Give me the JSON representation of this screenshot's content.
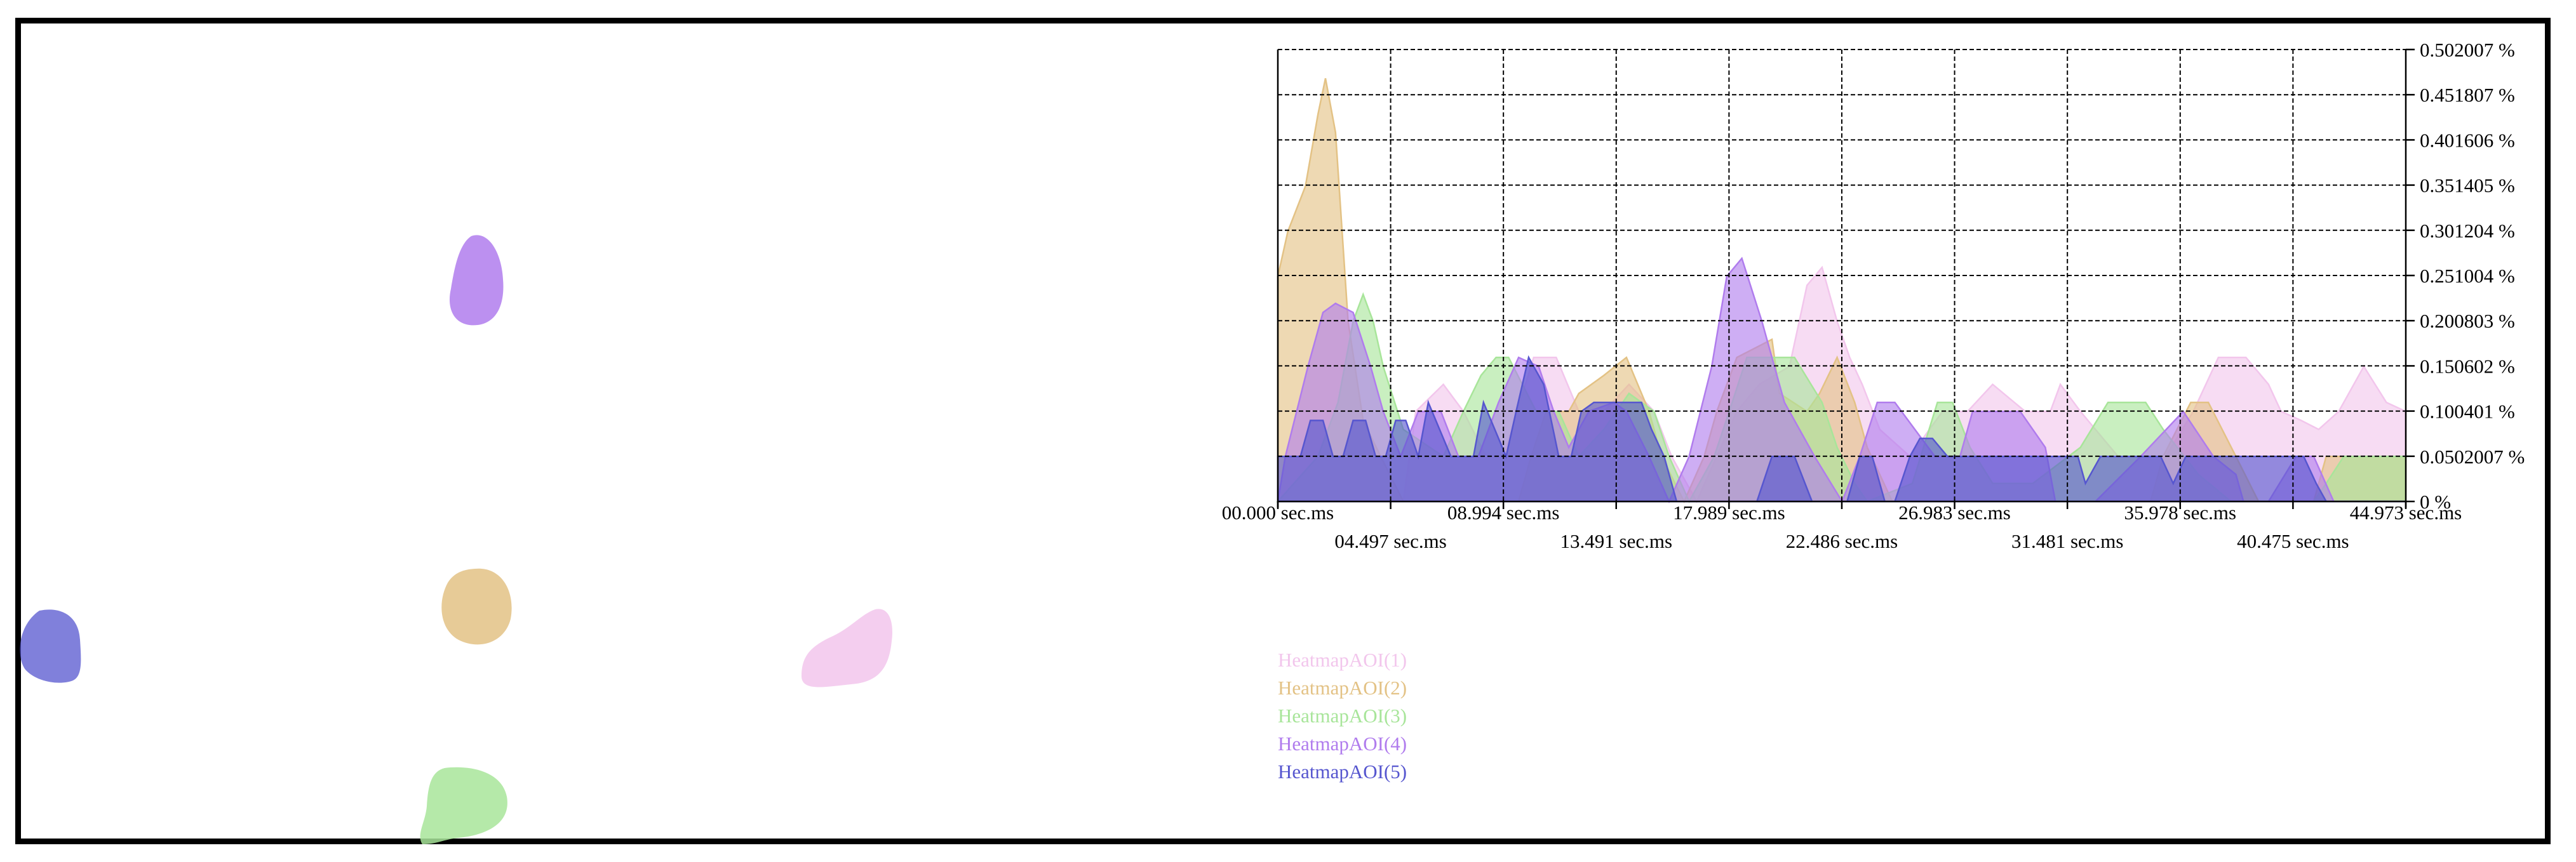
{
  "chart_data": {
    "type": "area",
    "x_unit": "sec.ms",
    "xlim": [
      0,
      44.973
    ],
    "ylim": [
      0,
      0.502007
    ],
    "x_ticks_row1": [
      "00.000 sec.ms",
      "08.994 sec.ms",
      "17.989 sec.ms",
      "26.983 sec.ms",
      "35.978 sec.ms",
      "44.973 sec.ms"
    ],
    "x_ticks_row2": [
      "04.497 sec.ms",
      "13.491 sec.ms",
      "22.486 sec.ms",
      "31.481 sec.ms",
      "40.475 sec.ms"
    ],
    "x_tick_values": [
      0,
      4.497,
      8.994,
      13.491,
      17.989,
      22.486,
      26.983,
      31.481,
      35.978,
      40.475,
      44.973
    ],
    "y_ticks": [
      "0 %",
      "0.0502007 %",
      "0.100401 %",
      "0.150602 %",
      "0.200803 %",
      "0.251004 %",
      "0.301204 %",
      "0.351405 %",
      "0.401606 %",
      "0.451807 %",
      "0.502007 %"
    ],
    "y_tick_values": [
      0,
      0.0502007,
      0.100401,
      0.150602,
      0.200803,
      0.251004,
      0.301204,
      0.351405,
      0.401606,
      0.451807,
      0.502007
    ],
    "grid": true,
    "legend_position": "bottom-left",
    "series": [
      {
        "name": "HeatmapAOI(1)",
        "color": "#f2c6ec",
        "x": [
          0,
          3,
          5,
          5.5,
          6.6,
          7.4,
          8.3,
          9,
          10.2,
          11.1,
          12,
          13,
          14,
          15,
          15.7,
          16.7,
          17.5,
          18.3,
          19.2,
          20.4,
          21.1,
          21.7,
          22.3,
          22.8,
          23.3,
          24,
          25.2,
          26.5,
          27.5,
          28.5,
          29.8,
          30.8,
          31.2,
          32,
          33.5,
          35.4,
          36.5,
          37.5,
          38.6,
          39.5,
          40,
          40.8,
          41.5,
          42.3,
          43.3,
          44.2,
          44.973
        ],
        "values": [
          0,
          0,
          0,
          0.1,
          0.13,
          0.1,
          0.05,
          0.05,
          0.16,
          0.16,
          0.1,
          0.1,
          0.13,
          0.1,
          0.05,
          0.0,
          0.05,
          0.1,
          0.13,
          0.15,
          0.24,
          0.26,
          0.2,
          0.16,
          0.13,
          0.08,
          0.05,
          0.1,
          0.1,
          0.13,
          0.1,
          0.1,
          0.13,
          0.1,
          0.05,
          0.05,
          0.1,
          0.16,
          0.16,
          0.13,
          0.1,
          0.09,
          0.08,
          0.1,
          0.15,
          0.11,
          0.1
        ]
      },
      {
        "name": "HeatmapAOI(2)",
        "color": "#e3c285",
        "x": [
          0,
          0.4,
          1.1,
          1.6,
          1.9,
          2.3,
          2.8,
          3.4,
          4.1,
          5,
          9.6,
          10.1,
          10.7,
          11.6,
          12,
          13,
          13.9,
          14.8,
          15.3,
          16.2,
          17,
          17.5,
          18.3,
          19.7,
          20,
          21.1,
          21.6,
          22.3,
          23,
          23.5,
          24.5,
          34.8,
          35.3,
          36.4,
          37.1,
          38.2,
          39.1,
          40.1,
          41.3,
          41.8,
          43,
          44.973
        ],
        "values": [
          0.25,
          0.3,
          0.35,
          0.43,
          0.47,
          0.41,
          0.2,
          0.09,
          0.05,
          0,
          0,
          0.05,
          0.1,
          0.1,
          0.12,
          0.14,
          0.16,
          0.1,
          0.05,
          0.0,
          0.05,
          0.1,
          0.16,
          0.18,
          0.12,
          0.1,
          0.12,
          0.16,
          0.11,
          0.06,
          0,
          0,
          0.05,
          0.11,
          0.11,
          0.05,
          0,
          0.0,
          0,
          0.05,
          0.05,
          0.05
        ]
      },
      {
        "name": "HeatmapAOI(3)",
        "color": "#a8e59a",
        "x": [
          0,
          1.6,
          2.4,
          3,
          3.4,
          3.8,
          4.2,
          5,
          6.6,
          7.4,
          8.1,
          8.7,
          9.2,
          10.3,
          11.2,
          12,
          13,
          14,
          15,
          15.6,
          16.4,
          17.4,
          18,
          18.7,
          19.8,
          20.6,
          21.7,
          22.3,
          23,
          23.5,
          25.3,
          26.3,
          26.9,
          27.6,
          28.5,
          30.1,
          32,
          33.1,
          33.8,
          34.6,
          35.3,
          36.7,
          38,
          39.9,
          41.3,
          41.8,
          42.5,
          43.2,
          44.973
        ],
        "values": [
          0,
          0.05,
          0.11,
          0.2,
          0.23,
          0.2,
          0.15,
          0.08,
          0.05,
          0.1,
          0.14,
          0.16,
          0.16,
          0.1,
          0.1,
          0.05,
          0.08,
          0.12,
          0.1,
          0.05,
          0,
          0.05,
          0.1,
          0.16,
          0.16,
          0.16,
          0.11,
          0.06,
          0.02,
          0,
          0.02,
          0.11,
          0.11,
          0.06,
          0.02,
          0.02,
          0.06,
          0.11,
          0.11,
          0.11,
          0.08,
          0.03,
          0.0,
          0.0,
          0.0,
          0.02,
          0.05,
          0.05,
          0.05
        ]
      },
      {
        "name": "HeatmapAOI(4)",
        "color": "#b07ced",
        "x": [
          0,
          0.3,
          1.2,
          1.8,
          2.3,
          3,
          3.7,
          4.2,
          4.9,
          5.6,
          6.5,
          7.2,
          8,
          8.8,
          9.6,
          10.4,
          11,
          11.6,
          12.4,
          13.4,
          13.9,
          14.8,
          15.6,
          16.4,
          17.3,
          17.9,
          18.5,
          19.3,
          19.8,
          20.2,
          21.4,
          22.5,
          23.2,
          23.9,
          24.6,
          26.2,
          27.2,
          27.7,
          28.4,
          29.6,
          30.6,
          31,
          32.6,
          34.4,
          36.1,
          37.3,
          38.2,
          38.5,
          39.5,
          40.6,
          41.3,
          42.1,
          44.973
        ],
        "values": [
          0,
          0.05,
          0.15,
          0.21,
          0.22,
          0.21,
          0.15,
          0.1,
          0.05,
          0.1,
          0.1,
          0.05,
          0.05,
          0.11,
          0.16,
          0.15,
          0.1,
          0.06,
          0.1,
          0.11,
          0.1,
          0.05,
          0.0,
          0.05,
          0.15,
          0.25,
          0.27,
          0.2,
          0.15,
          0.11,
          0.05,
          0,
          0.05,
          0.11,
          0.11,
          0.05,
          0.05,
          0.1,
          0.1,
          0.1,
          0.06,
          0.0,
          0.0,
          0.05,
          0.1,
          0.05,
          0.03,
          0.0,
          0.0,
          0.05,
          0.05,
          0.0,
          0
        ]
      },
      {
        "name": "HeatmapAOI(5)",
        "color": "#5656cf",
        "x": [
          0,
          0.9,
          1.3,
          1.8,
          2.2,
          2.6,
          3,
          3.5,
          3.9,
          4.3,
          4.7,
          5.1,
          5.6,
          6,
          6.9,
          7.8,
          8.2,
          9.1,
          9.5,
          10,
          10.6,
          11.2,
          11.7,
          12.1,
          12.6,
          13.1,
          14.5,
          14.9,
          15.4,
          15.9,
          17.4,
          19.1,
          19.7,
          20.6,
          21.3,
          22.2,
          22.7,
          23.2,
          23.7,
          24.2,
          24.6,
          25.2,
          25.6,
          26.1,
          26.7,
          27.4,
          29,
          30.3,
          31.9,
          32.2,
          32.8,
          33.2,
          34.8,
          35.2,
          35.7,
          36.2,
          37.8,
          38.3,
          39.8,
          40.4,
          40.9,
          41.4,
          41.8,
          44.973
        ],
        "values": [
          0.05,
          0.05,
          0.09,
          0.09,
          0.05,
          0.05,
          0.09,
          0.09,
          0.05,
          0.05,
          0.09,
          0.09,
          0.05,
          0.11,
          0.05,
          0.05,
          0.11,
          0.05,
          0.1,
          0.16,
          0.13,
          0.05,
          0.05,
          0.1,
          0.11,
          0.11,
          0.11,
          0.08,
          0.05,
          0.0,
          0.0,
          0.0,
          0.05,
          0.05,
          0.0,
          0.0,
          0.0,
          0.05,
          0.05,
          0.0,
          0.0,
          0.05,
          0.07,
          0.07,
          0.05,
          0.05,
          0.05,
          0.05,
          0.05,
          0.02,
          0.05,
          0.05,
          0.05,
          0.05,
          0.02,
          0.05,
          0.05,
          0.05,
          0.05,
          0.05,
          0.05,
          0.02,
          0.0,
          0
        ]
      }
    ]
  },
  "aoi_regions": [
    {
      "name": "HeatmapAOI(1)",
      "color": "#f2c6ec"
    },
    {
      "name": "HeatmapAOI(2)",
      "color": "#e3c285"
    },
    {
      "name": "HeatmapAOI(3)",
      "color": "#a8e59a"
    },
    {
      "name": "HeatmapAOI(4)",
      "color": "#b07ced"
    },
    {
      "name": "HeatmapAOI(5)",
      "color": "#5656cf"
    }
  ]
}
